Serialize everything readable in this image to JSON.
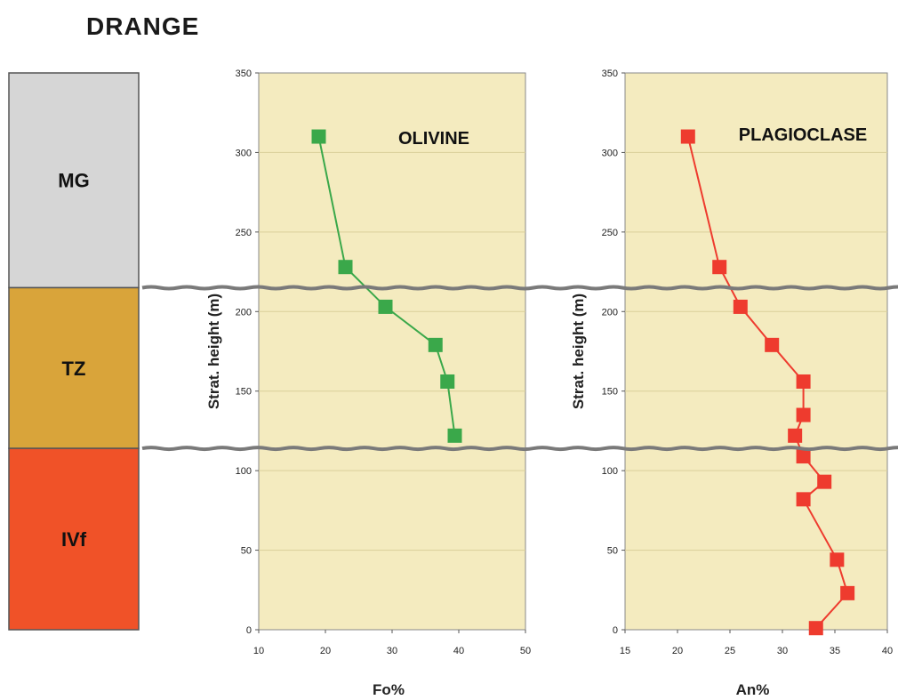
{
  "title": "DRANGE",
  "stratigraphy": [
    {
      "label": "MG",
      "color": "#d6d6d6",
      "top_m": 350,
      "bottom_m": 215
    },
    {
      "label": "TZ",
      "color": "#d9a43a",
      "top_m": 215,
      "bottom_m": 114
    },
    {
      "label": "IVf",
      "color": "#f05228",
      "top_m": 114,
      "bottom_m": 0
    }
  ],
  "boundaries_m": [
    215,
    114
  ],
  "chart_data": [
    {
      "type": "line",
      "title": "OLIVINE",
      "xlabel": "Fo%",
      "ylabel": "Strat. height (m)",
      "xlim": [
        10,
        50
      ],
      "ylim": [
        0,
        350
      ],
      "xticks": [
        "10",
        "20",
        "30",
        "40",
        "50"
      ],
      "yticks": [
        "0",
        "50",
        "100",
        "150",
        "200",
        "250",
        "300",
        "350"
      ],
      "marker": "square",
      "color": "#3aa84a",
      "background": "#f4ebbf",
      "series": [
        {
          "points": [
            {
              "x": 19,
              "y": 310
            },
            {
              "x": 23,
              "y": 228
            },
            {
              "x": 29,
              "y": 203
            },
            {
              "x": 36.5,
              "y": 179
            },
            {
              "x": 38.3,
              "y": 156
            },
            {
              "x": 39.4,
              "y": 122
            }
          ]
        }
      ]
    },
    {
      "type": "line",
      "title": "PLAGIOCLASE",
      "xlabel": "An%",
      "ylabel": "Strat. height (m)",
      "xlim": [
        15,
        40
      ],
      "ylim": [
        0,
        350
      ],
      "xticks": [
        "15",
        "20",
        "25",
        "30",
        "35",
        "40"
      ],
      "yticks": [
        "0",
        "50",
        "100",
        "150",
        "200",
        "250",
        "300",
        "350"
      ],
      "marker": "square",
      "color": "#ee3b2e",
      "background": "#f4ebbf",
      "series": [
        {
          "points": [
            {
              "x": 21,
              "y": 310
            },
            {
              "x": 24,
              "y": 228
            },
            {
              "x": 26,
              "y": 203
            },
            {
              "x": 29,
              "y": 179
            },
            {
              "x": 32,
              "y": 156
            },
            {
              "x": 32,
              "y": 135
            },
            {
              "x": 31.2,
              "y": 122
            },
            {
              "x": 32,
              "y": 109
            },
            {
              "x": 34,
              "y": 93
            },
            {
              "x": 32,
              "y": 82
            },
            {
              "x": 35.2,
              "y": 44
            },
            {
              "x": 36.2,
              "y": 23
            },
            {
              "x": 33.2,
              "y": 1
            }
          ]
        }
      ]
    }
  ]
}
